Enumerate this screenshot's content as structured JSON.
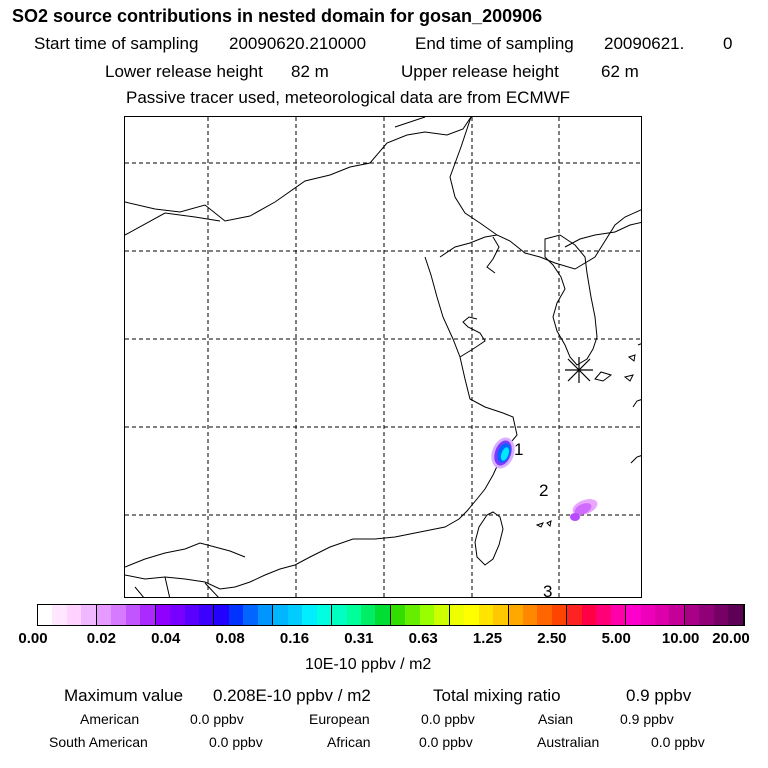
{
  "header": {
    "title": "SO2 source contributions in nested domain for gosan_200906",
    "start_label": "Start time of sampling",
    "start_value": "20090620.210000",
    "end_label": "End time of sampling",
    "end_value": "20090621.",
    "end_suffix": "0",
    "lower_label": "Lower release height",
    "lower_value": "82 m",
    "upper_label": "Upper release height",
    "upper_value": "62 m",
    "tracer_note": "Passive tracer used, meteorological data are from ECMWF"
  },
  "map": {
    "markers": [
      "1",
      "2",
      "3"
    ],
    "receptor_icon": "asterisk-receptor-icon"
  },
  "colorbar": {
    "unit": "10E-10 ppbv / m2",
    "ticks": [
      "0.00",
      "0.02",
      "0.04",
      "0.08",
      "0.16",
      "0.31",
      "0.63",
      "1.25",
      "2.50",
      "5.00",
      "10.00",
      "20.00"
    ],
    "colors": [
      "#ffffff",
      "#ffe8ff",
      "#ffd2ff",
      "#f0b8ff",
      "#e59bff",
      "#d67bff",
      "#c155ff",
      "#aa2aff",
      "#8f00ff",
      "#7700ff",
      "#5a00ff",
      "#3c00ff",
      "#2400ff",
      "#0033ff",
      "#0066ff",
      "#0095ff",
      "#00b6ff",
      "#00ccff",
      "#00eeff",
      "#00ffe0",
      "#00ffc0",
      "#00ff99",
      "#00ee66",
      "#00dd33",
      "#33dd00",
      "#66ee00",
      "#99ff00",
      "#ccff00",
      "#eeff00",
      "#ffff00",
      "#ffe400",
      "#ffc800",
      "#ffa800",
      "#ff8800",
      "#ff6600",
      "#ff4400",
      "#ff2222",
      "#ff0044",
      "#ff0077",
      "#ff00aa",
      "#ff00cc",
      "#ee00bb",
      "#dd00aa",
      "#c40099",
      "#aa0088",
      "#900077",
      "#770066",
      "#5e0055"
    ]
  },
  "stats": {
    "max_label": "Maximum value",
    "max_value": "0.208E-10 ppbv / m2",
    "total_label": "Total mixing ratio",
    "total_value": "0.9 ppbv",
    "regions": [
      {
        "name": "American",
        "value": "0.0 ppbv"
      },
      {
        "name": "European",
        "value": "0.0 ppbv"
      },
      {
        "name": "Asian",
        "value": "0.9 ppbv"
      },
      {
        "name": "South American",
        "value": "0.0 ppbv"
      },
      {
        "name": "African",
        "value": "0.0 ppbv"
      },
      {
        "name": "Australian",
        "value": "0.0 ppbv"
      }
    ]
  }
}
